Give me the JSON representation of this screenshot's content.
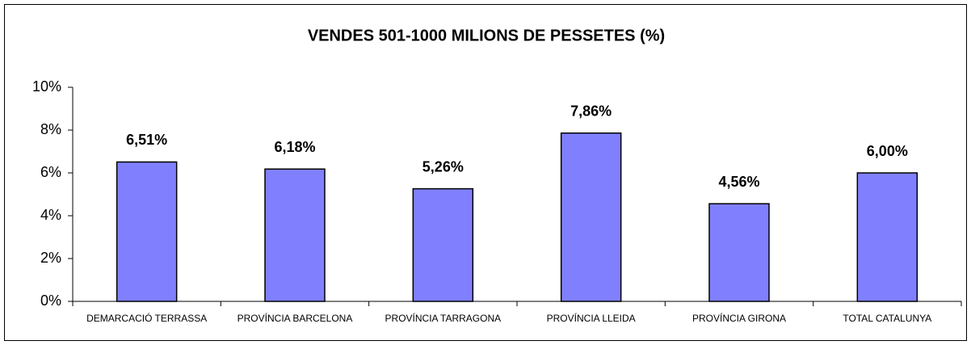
{
  "chart_data": {
    "type": "bar",
    "title": "VENDES 501-1000 MILIONS DE PESSETES (%)",
    "categories": [
      "DEMARCACIÓ TERRASSA",
      "PROVÍNCIA BARCELONA",
      "PROVÍNCIA TARRAGONA",
      "PROVÍNCIA LLEIDA",
      "PROVÍNCIA GIRONA",
      "TOTAL CATALUNYA"
    ],
    "values": [
      6.51,
      6.18,
      5.26,
      7.86,
      4.56,
      6.0
    ],
    "value_labels": [
      "6,51%",
      "6,18%",
      "5,26%",
      "7,86%",
      "4,56%",
      "6,00%"
    ],
    "color": "#8080ff",
    "ylim": [
      0,
      10
    ],
    "yticks": [
      {
        "value": 0,
        "label": "0%"
      },
      {
        "value": 2,
        "label": "2%"
      },
      {
        "value": 4,
        "label": "4%"
      },
      {
        "value": 6,
        "label": "6%"
      },
      {
        "value": 8,
        "label": "8%"
      },
      {
        "value": 10,
        "label": "10%"
      }
    ],
    "grid": false
  }
}
